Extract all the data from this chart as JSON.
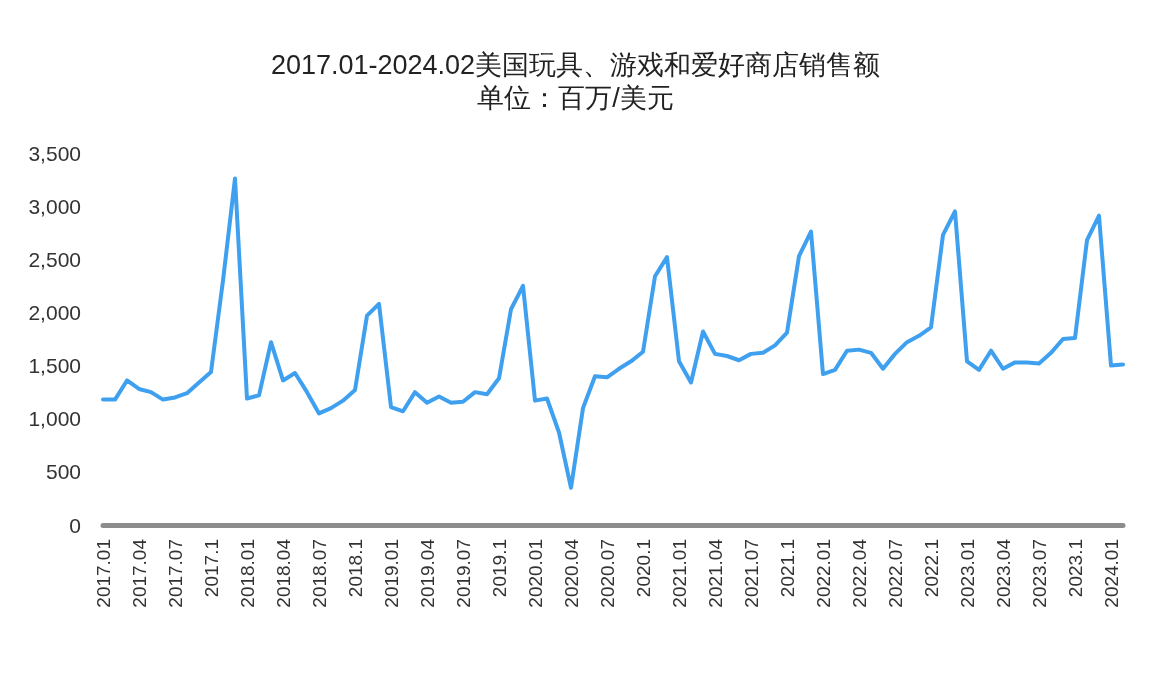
{
  "chart_data": {
    "type": "line",
    "title": "2017.01-2024.02美国玩具、游戏和爱好商店销售额",
    "subtitle": "单位：百万/美元",
    "categories": [
      "2017.01",
      null,
      null,
      "2017.04",
      null,
      null,
      "2017.07",
      null,
      null,
      "2017.1",
      null,
      null,
      "2018.01",
      null,
      null,
      "2018.04",
      null,
      null,
      "2018.07",
      null,
      null,
      "2018.1",
      null,
      null,
      "2019.01",
      null,
      null,
      "2019.04",
      null,
      null,
      "2019.07",
      null,
      null,
      "2019.1",
      null,
      null,
      "2020.01",
      null,
      null,
      "2020.04",
      null,
      null,
      "2020.07",
      null,
      null,
      "2020.1",
      null,
      null,
      "2021.01",
      null,
      null,
      "2021.04",
      null,
      null,
      "2021.07",
      null,
      null,
      "2021.1",
      null,
      null,
      "2022.01",
      null,
      null,
      "2022.04",
      null,
      null,
      "2022.07",
      null,
      null,
      "2022.1",
      null,
      null,
      "2023.01",
      null,
      null,
      "2023.04",
      null,
      null,
      "2023.07",
      null,
      null,
      "2023.1",
      null,
      null,
      "2024.01",
      null
    ],
    "series": [
      {
        "color": "#3fa0f0",
        "values": [
          1180,
          1180,
          1360,
          1280,
          1250,
          1180,
          1200,
          1240,
          1340,
          1440,
          2300,
          3260,
          1190,
          1220,
          1720,
          1360,
          1430,
          1250,
          1050,
          1100,
          1170,
          1270,
          1970,
          2080,
          1110,
          1070,
          1250,
          1150,
          1210,
          1150,
          1160,
          1250,
          1230,
          1380,
          2030,
          2250,
          1170,
          1190,
          870,
          350,
          1100,
          1400,
          1390,
          1470,
          1540,
          1630,
          2340,
          2520,
          1540,
          1340,
          1820,
          1610,
          1590,
          1550,
          1610,
          1620,
          1690,
          1810,
          2530,
          2760,
          1420,
          1460,
          1640,
          1650,
          1620,
          1470,
          1610,
          1720,
          1780,
          1860,
          2730,
          2950,
          1540,
          1460,
          1640,
          1470,
          1530,
          1530,
          1520,
          1620,
          1750,
          1760,
          2680,
          2910,
          1500,
          1510
        ]
      }
    ],
    "ylim": [
      0,
      3500
    ],
    "yticks": [
      0,
      {
        "value": 500,
        "label": "500"
      },
      {
        "value": 1000,
        "label": "1,000"
      },
      {
        "value": 1500,
        "label": "1,500"
      },
      {
        "value": 2000,
        "label": "2,000"
      },
      {
        "value": 2500,
        "label": "2,500"
      },
      {
        "value": 3000,
        "label": "3,000"
      },
      {
        "value": 3500,
        "label": "3,500"
      }
    ],
    "grid": false,
    "marker": "none",
    "line_style": "solid"
  }
}
